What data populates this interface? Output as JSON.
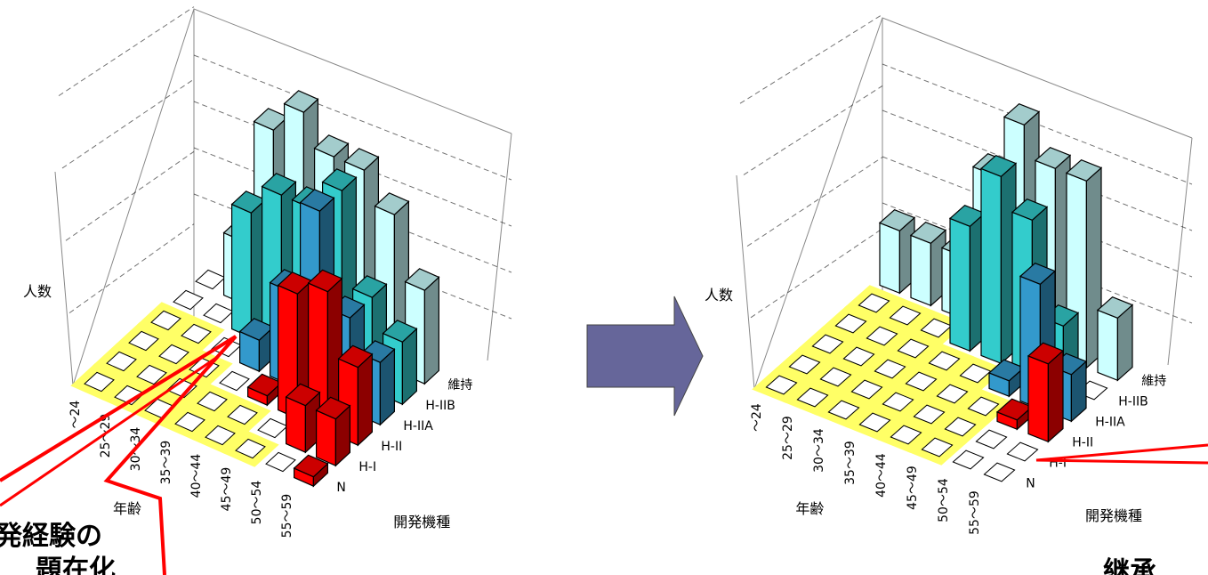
{
  "chart_data": [
    {
      "type": "bar3d",
      "title": "",
      "zlabel": "人数",
      "xlabel": "年齢",
      "ylabel": "開発機種",
      "x_categories": [
        "〜24",
        "25〜29",
        "30〜34",
        "35〜39",
        "40〜44",
        "45〜49",
        "50〜54",
        "55〜59"
      ],
      "y_categories": [
        "N",
        "H-I",
        "H-II",
        "H-IIA",
        "H-IIB",
        "維持"
      ],
      "bars": [
        {
          "x": "25〜29",
          "y": "維持",
          "value": 2
        },
        {
          "x": "30〜34",
          "y": "維持",
          "value": 6
        },
        {
          "x": "35〜39",
          "y": "維持",
          "value": 7
        },
        {
          "x": "40〜44",
          "y": "維持",
          "value": 6
        },
        {
          "x": "45〜49",
          "y": "維持",
          "value": 6
        },
        {
          "x": "50〜54",
          "y": "維持",
          "value": 5
        },
        {
          "x": "55〜59",
          "y": "維持",
          "value": 3
        },
        {
          "x": "30〜34",
          "y": "H-IIB",
          "value": 4
        },
        {
          "x": "35〜39",
          "y": "H-IIB",
          "value": 5
        },
        {
          "x": "40〜44",
          "y": "H-IIB",
          "value": 5
        },
        {
          "x": "45〜49",
          "y": "H-IIB",
          "value": 6
        },
        {
          "x": "50〜54",
          "y": "H-IIB",
          "value": 3
        },
        {
          "x": "55〜59",
          "y": "H-IIB",
          "value": 2
        },
        {
          "x": "35〜39",
          "y": "H-IIA",
          "value": 1
        },
        {
          "x": "40〜44",
          "y": "H-IIA",
          "value": 3
        },
        {
          "x": "45〜49",
          "y": "H-IIA",
          "value": 6
        },
        {
          "x": "50〜54",
          "y": "H-IIA",
          "value": 3
        },
        {
          "x": "55〜59",
          "y": "H-IIA",
          "value": 2
        },
        {
          "x": "40〜44",
          "y": "H-II",
          "value": 0.3
        },
        {
          "x": "45〜49",
          "y": "H-II",
          "value": 4
        },
        {
          "x": "50〜54",
          "y": "H-II",
          "value": 4.5
        },
        {
          "x": "55〜59",
          "y": "H-II",
          "value": 2.5
        },
        {
          "x": "50〜54",
          "y": "H-I",
          "value": 1.5
        },
        {
          "x": "55〜59",
          "y": "H-I",
          "value": 1.5
        },
        {
          "x": "55〜59",
          "y": "N",
          "value": 0.3
        }
      ],
      "highlight_region": "young/unexperienced cells",
      "callout_text": [
        "発経験の",
        "題在化"
      ]
    },
    {
      "type": "bar3d",
      "title": "",
      "zlabel": "人数",
      "xlabel": "年齢",
      "ylabel": "開発機種",
      "x_categories": [
        "〜24",
        "25〜29",
        "30〜34",
        "35〜39",
        "40〜44",
        "45〜49",
        "50〜54",
        "55〜59"
      ],
      "y_categories": [
        "N",
        "H-I",
        "H-II",
        "H-IIA",
        "H-IIB",
        "維持"
      ],
      "bars": [
        {
          "x": "〜24",
          "y": "維持",
          "value": 2
        },
        {
          "x": "25〜29",
          "y": "維持",
          "value": 2
        },
        {
          "x": "30〜34",
          "y": "維持",
          "value": 2
        },
        {
          "x": "35〜39",
          "y": "維持",
          "value": 5
        },
        {
          "x": "40〜44",
          "y": "維持",
          "value": 7
        },
        {
          "x": "45〜49",
          "y": "維持",
          "value": 6
        },
        {
          "x": "50〜54",
          "y": "維持",
          "value": 6
        },
        {
          "x": "55〜59",
          "y": "維持",
          "value": 2
        },
        {
          "x": "35〜39",
          "y": "H-IIB",
          "value": 4
        },
        {
          "x": "40〜44",
          "y": "H-IIB",
          "value": 6
        },
        {
          "x": "45〜49",
          "y": "H-IIB",
          "value": 5
        },
        {
          "x": "50〜54",
          "y": "H-IIB",
          "value": 2
        },
        {
          "x": "45〜49",
          "y": "H-IIA",
          "value": 0.5
        },
        {
          "x": "50〜54",
          "y": "H-IIA",
          "value": 4
        },
        {
          "x": "55〜59",
          "y": "H-IIA",
          "value": 1.5
        },
        {
          "x": "50〜54",
          "y": "H-II",
          "value": 0.3
        },
        {
          "x": "55〜59",
          "y": "H-II",
          "value": 2.5
        }
      ],
      "highlight_region": "young/unexperienced cells",
      "callout_text": [
        "継承"
      ]
    }
  ],
  "arrow": {
    "color": "#66669a"
  },
  "colors": {
    "maint": "#ccffff",
    "h2b": "#33cccc",
    "h2a": "#3399cc",
    "h2": "#ff0000",
    "h1": "#ff0000",
    "n": "#ff0000",
    "highlight": "#ffff66",
    "callout": "#ff0000"
  }
}
